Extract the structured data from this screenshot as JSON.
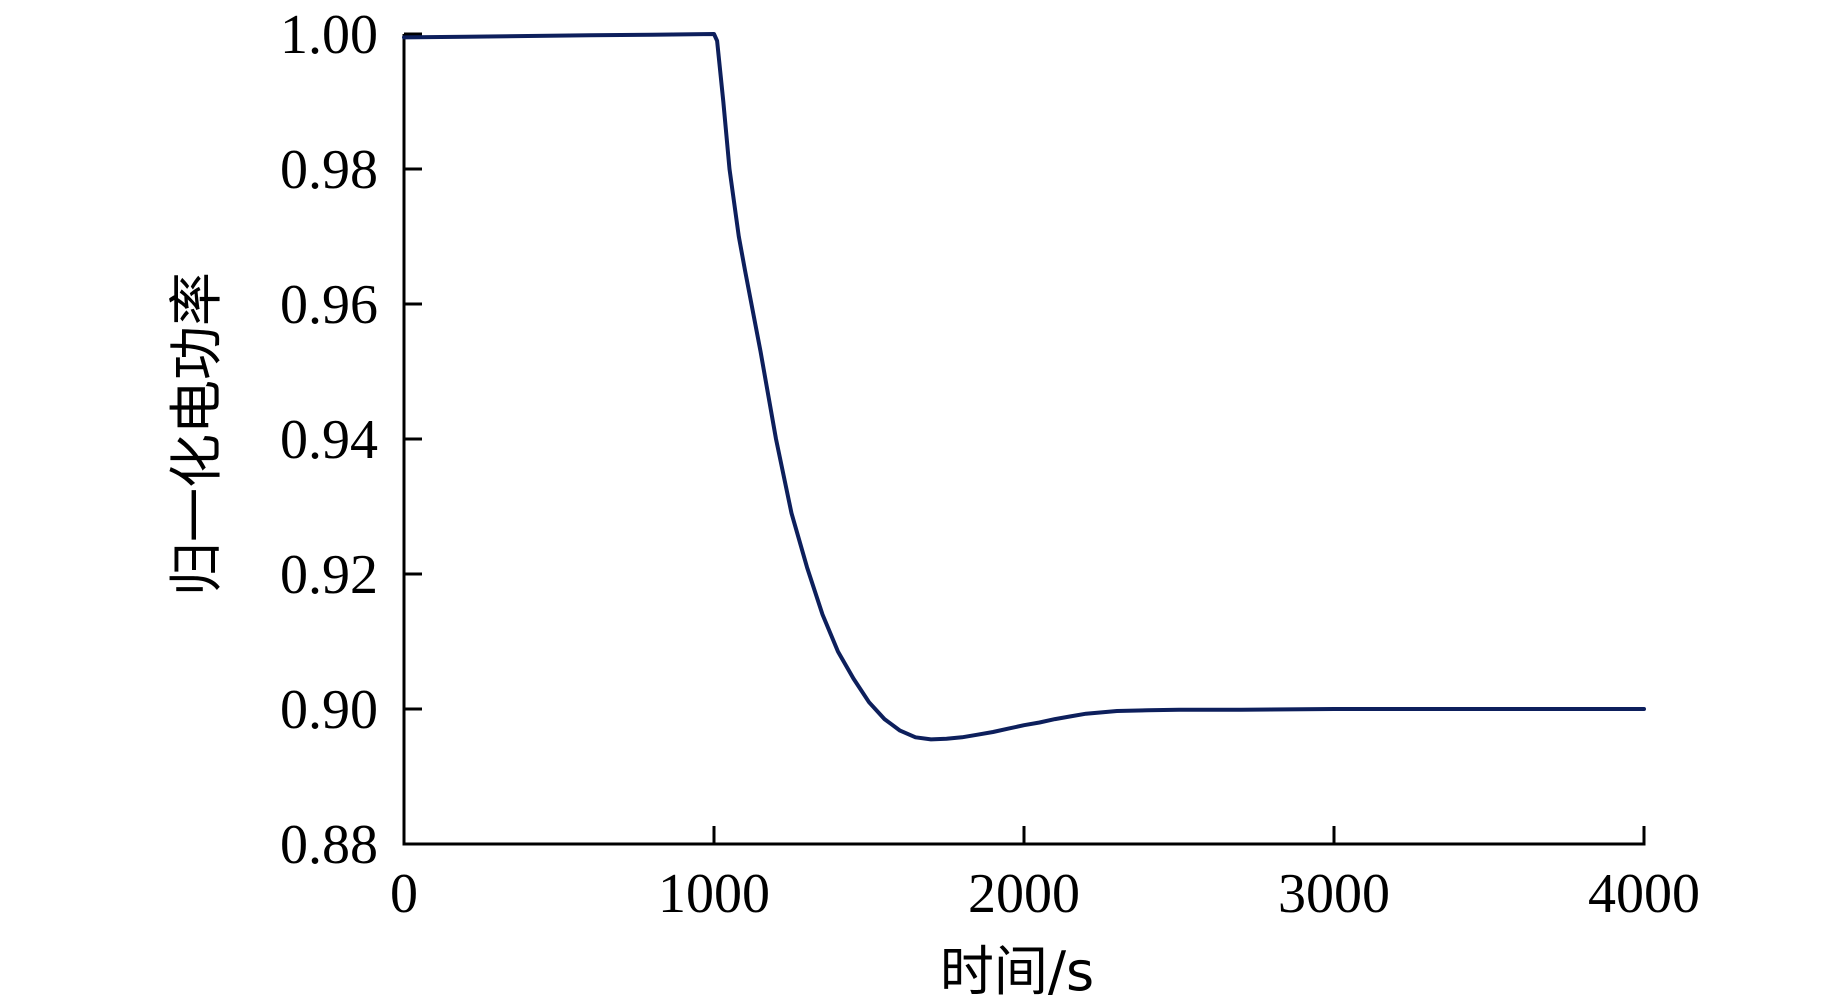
{
  "chart_data": {
    "type": "line",
    "title": "",
    "xlabel": "时间/s",
    "ylabel": "归一化电功率",
    "xlim": [
      0,
      4000
    ],
    "ylim": [
      0.88,
      1.0
    ],
    "x_ticks": [
      0,
      1000,
      2000,
      3000,
      4000
    ],
    "x_tick_labels": [
      "0",
      "1000",
      "2000",
      "3000",
      "4000"
    ],
    "y_ticks": [
      0.88,
      0.9,
      0.92,
      0.94,
      0.96,
      0.98,
      1.0
    ],
    "y_tick_labels": [
      "0.88",
      "0.90",
      "0.92",
      "0.94",
      "0.96",
      "0.98",
      "1.00"
    ],
    "grid": false,
    "legend": "none",
    "line_color": "#0d1f5c",
    "series": [
      {
        "x": [
          0,
          200,
          400,
          600,
          800,
          1000,
          1010,
          1030,
          1050,
          1080,
          1100,
          1150,
          1200,
          1250,
          1300,
          1350,
          1400,
          1450,
          1500,
          1550,
          1600,
          1650,
          1700,
          1750,
          1800,
          1850,
          1900,
          1950,
          2000,
          2050,
          2100,
          2150,
          2200,
          2250,
          2300,
          2400,
          2500,
          2700,
          3000,
          3500,
          4000
        ],
        "y": [
          0.9995,
          0.9996,
          0.9997,
          0.9998,
          0.9999,
          1.0,
          0.999,
          0.99,
          0.98,
          0.97,
          0.965,
          0.953,
          0.94,
          0.929,
          0.921,
          0.914,
          0.9085,
          0.9045,
          0.901,
          0.8985,
          0.8968,
          0.8958,
          0.8955,
          0.8956,
          0.8958,
          0.8962,
          0.8966,
          0.8971,
          0.8976,
          0.898,
          0.8985,
          0.8989,
          0.8993,
          0.8995,
          0.8997,
          0.8998,
          0.8999,
          0.8999,
          0.9,
          0.9,
          0.9
        ]
      }
    ]
  }
}
